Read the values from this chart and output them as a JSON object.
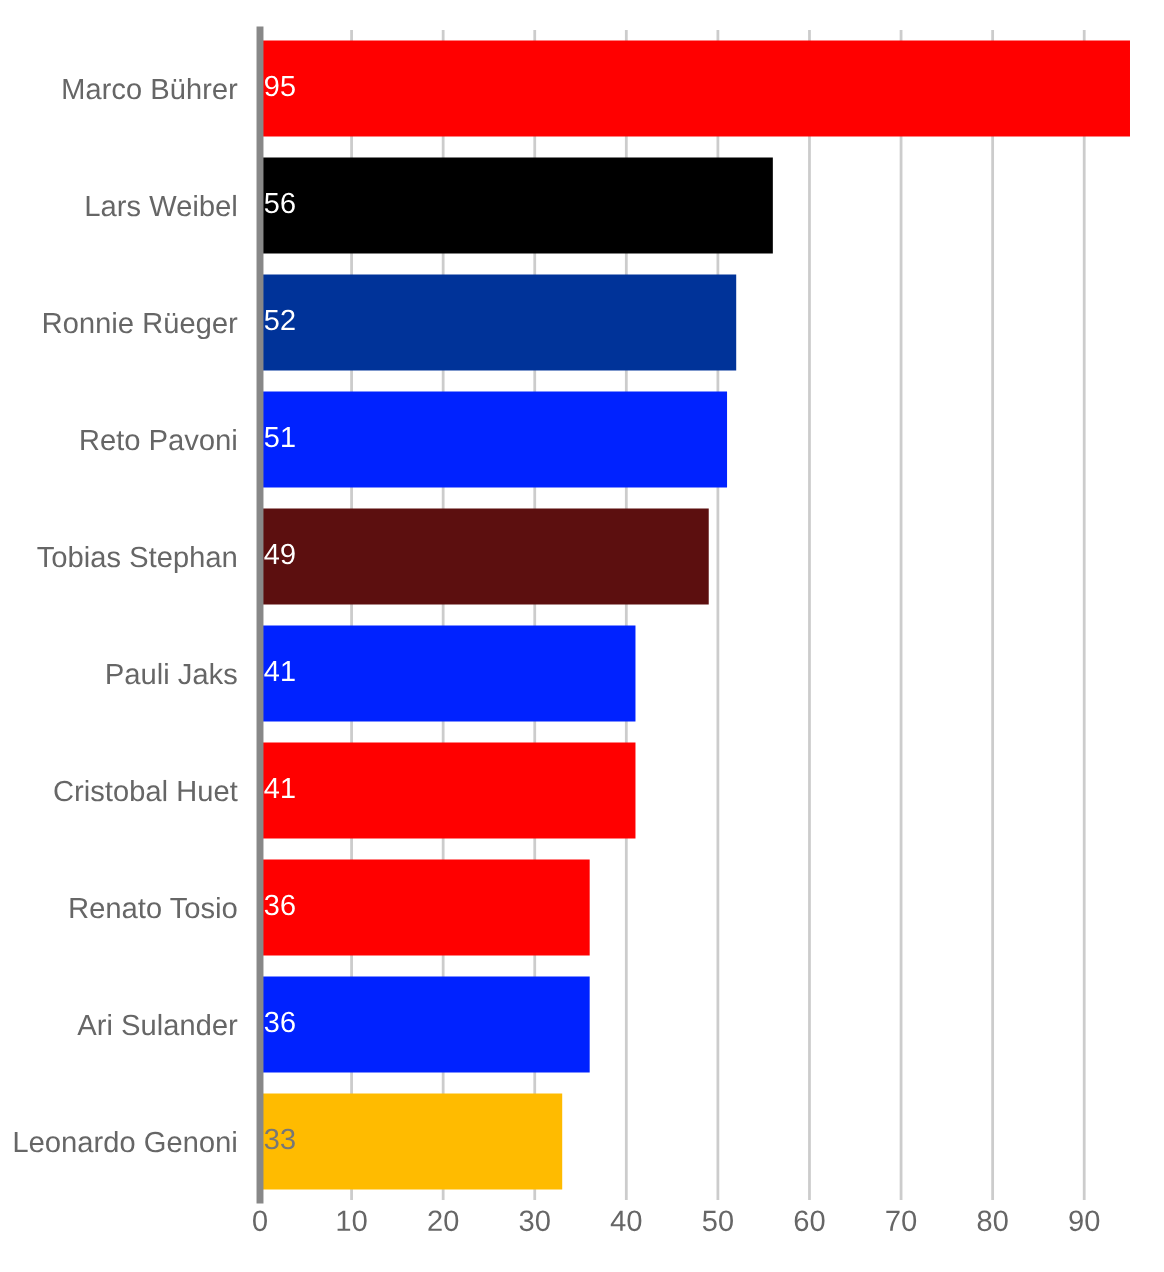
{
  "chart_data": {
    "type": "bar",
    "orientation": "horizontal",
    "categories": [
      "Marco Bührer",
      "Lars Weibel",
      "Ronnie Rüeger",
      "Reto Pavoni",
      "Tobias Stephan",
      "Pauli Jaks",
      "Cristobal Huet",
      "Renato Tosio",
      "Ari Sulander",
      "Leonardo Genoni"
    ],
    "values": [
      95,
      56,
      52,
      51,
      49,
      41,
      41,
      36,
      36,
      33
    ],
    "colors": [
      "#ff0000",
      "#000000",
      "#003399",
      "#0022ff",
      "#5c0f0f",
      "#0022ff",
      "#ff0000",
      "#ff0000",
      "#0022ff",
      "#ffbb00"
    ],
    "xlim": [
      0,
      95
    ],
    "xticks": [
      0,
      10,
      20,
      30,
      40,
      50,
      60,
      70,
      80,
      90
    ],
    "grid": "x",
    "data_labels": true
  }
}
